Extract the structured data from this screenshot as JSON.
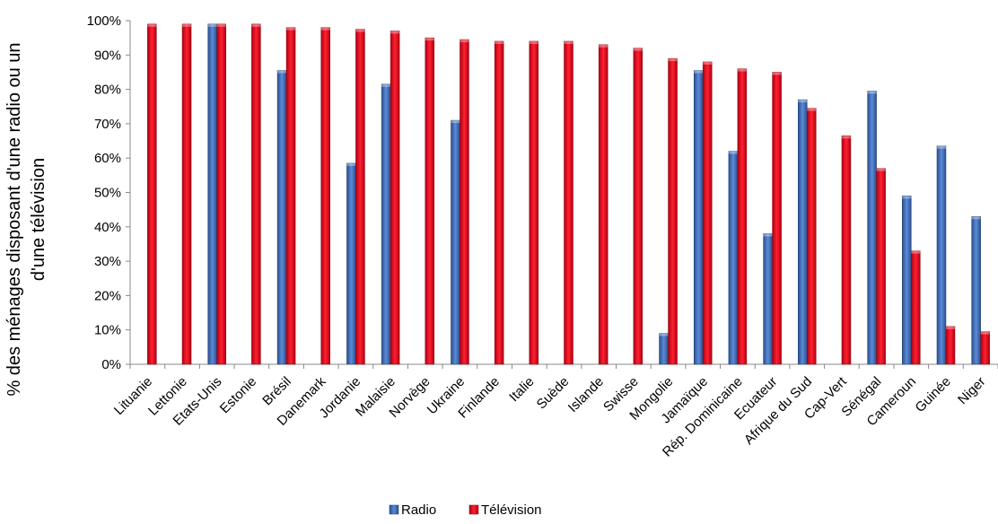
{
  "chart_data": {
    "type": "bar",
    "ylabel_lines": [
      "% des ménages disposant d'une radio ou un",
      "d'une télévision"
    ],
    "ylim": [
      0,
      100
    ],
    "yticks": [
      0,
      10,
      20,
      30,
      40,
      50,
      60,
      70,
      80,
      90,
      100
    ],
    "ytick_suffix": "%",
    "grid": false,
    "legend_position": "bottom",
    "categories": [
      "Lituanie",
      "Lettonie",
      "Etats-Unis",
      "Estonie",
      "Brésil",
      "Danemark",
      "Jordanie",
      "Malaisie",
      "Norvège",
      "Ukraine",
      "Finlande",
      "Italie",
      "Suède",
      "Islande",
      "Swisse",
      "Mongolie",
      "Jamaïque",
      "Rép. Dominicaine",
      "Ecuateur",
      "Afrique du Sud",
      "Cap-Vert",
      "Sénégal",
      "Cameroun",
      "Guinée",
      "Niger"
    ],
    "series": [
      {
        "name": "Radio",
        "color": "#3B6BB5",
        "values": [
          null,
          null,
          99,
          null,
          85.5,
          null,
          58.5,
          81.5,
          null,
          71,
          null,
          null,
          null,
          null,
          null,
          9,
          85.5,
          62,
          38,
          77,
          null,
          79.5,
          49,
          63.5,
          43
        ]
      },
      {
        "name": "Télévision",
        "color": "#E5000F",
        "values": [
          99,
          99,
          99,
          99,
          98,
          98,
          97.5,
          97,
          95,
          94.5,
          94,
          94,
          94,
          93,
          92,
          89,
          88,
          86,
          85,
          74.5,
          66.5,
          57,
          33,
          11,
          9.5
        ]
      }
    ]
  }
}
